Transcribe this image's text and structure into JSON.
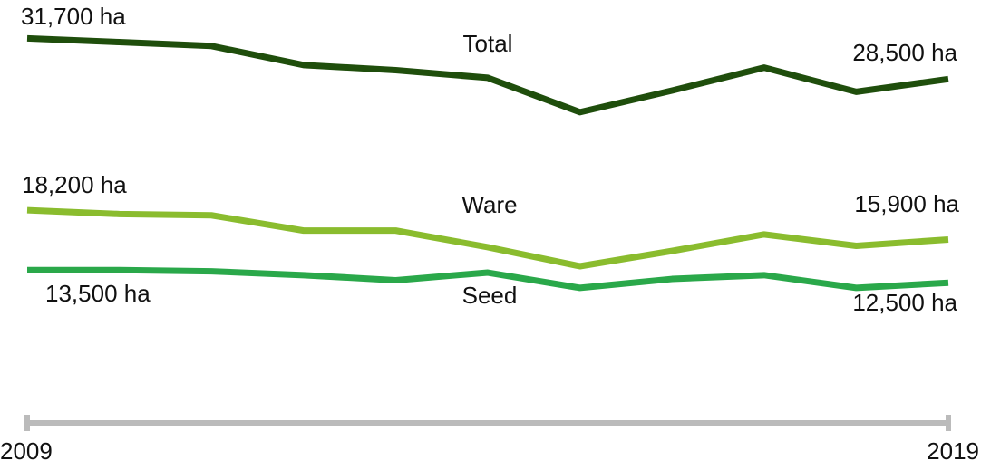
{
  "chart_data": {
    "type": "line",
    "x": [
      2009,
      2010,
      2011,
      2012,
      2013,
      2014,
      2015,
      2016,
      2017,
      2018,
      2019
    ],
    "xlim": [
      2009,
      2019
    ],
    "xticks": [
      2009,
      2019
    ],
    "ylim": [
      0,
      34000
    ],
    "series": [
      {
        "name": "Total",
        "color": "#1f4e0c",
        "values": [
          31700,
          31400,
          31100,
          29600,
          29200,
          28600,
          25900,
          27600,
          29400,
          27500,
          28500
        ],
        "value_labels": [
          "31,700 ha",
          null,
          null,
          null,
          null,
          null,
          null,
          null,
          null,
          null,
          "28,500 ha"
        ]
      },
      {
        "name": "Ware",
        "color": "#8abc2e",
        "values": [
          18200,
          17900,
          17800,
          16600,
          16600,
          15300,
          13800,
          15000,
          16300,
          15400,
          15900
        ],
        "value_labels": [
          "18,200 ha",
          null,
          null,
          null,
          null,
          null,
          null,
          null,
          null,
          null,
          "15,900 ha"
        ]
      },
      {
        "name": "Seed",
        "color": "#2aa84a",
        "values": [
          13500,
          13500,
          13400,
          13100,
          12700,
          13300,
          12100,
          12800,
          13100,
          12100,
          12500
        ],
        "value_labels": [
          "13,500 ha",
          null,
          null,
          null,
          null,
          null,
          null,
          null,
          null,
          null,
          "12,500 ha"
        ]
      }
    ]
  }
}
